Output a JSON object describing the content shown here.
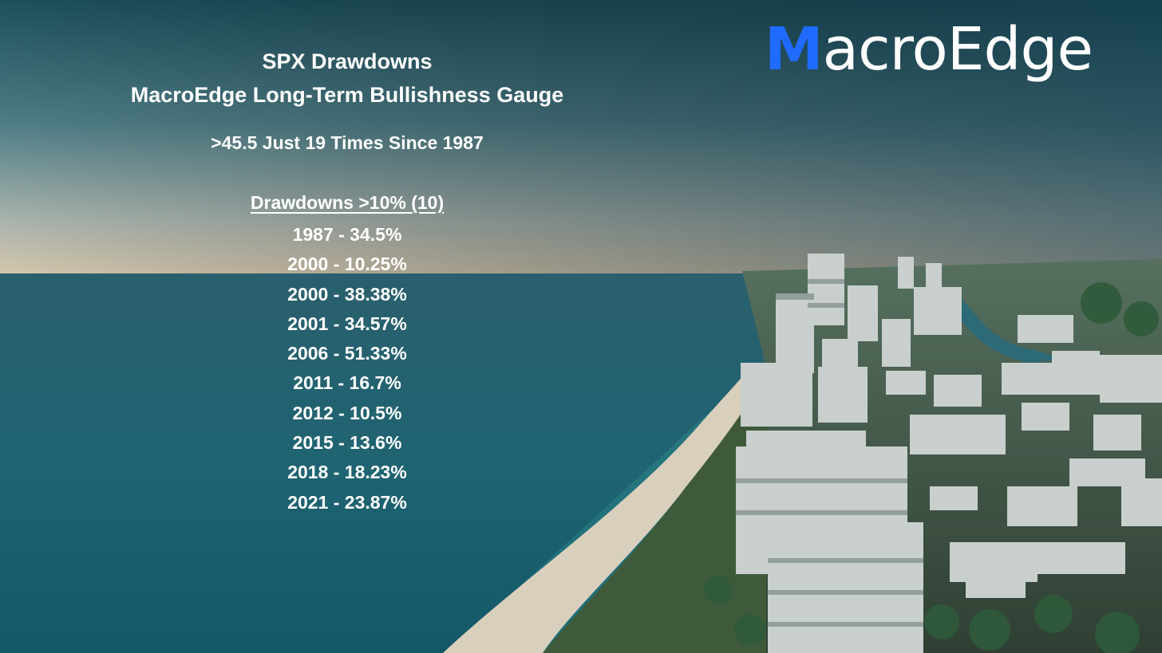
{
  "title_line1": "SPX Drawdowns",
  "title_line2": "MacroEdge Long-Term Bullishness Gauge",
  "subtitle": ">45.5 Just 19 Times Since 1987",
  "list_header": "Drawdowns >10% (10)",
  "drawdowns": [
    "1987 - 34.5%",
    "2000 - 10.25%",
    "2000 - 38.38%",
    "2001 - 34.57%",
    "2006 - 51.33%",
    "2011 - 16.7%",
    "2012 - 10.5%",
    "2015 - 13.6%",
    "2018 - 18.23%",
    "2021 - 23.87%"
  ],
  "logo": {
    "first_letter": "M",
    "rest": "acroEdge",
    "accent_color": "#1f6bff"
  },
  "background_image": "aerial coastline city photo"
}
